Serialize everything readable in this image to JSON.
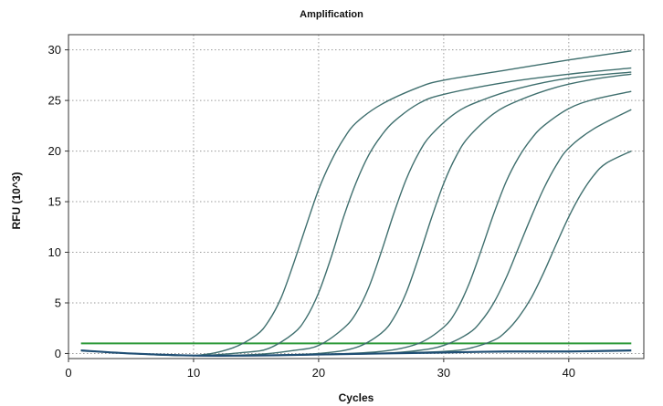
{
  "chart_data": {
    "type": "line",
    "title": "Amplification",
    "xlabel": "Cycles",
    "ylabel": "RFU (10^3)",
    "xlim": [
      0,
      46
    ],
    "ylim": [
      -0.5,
      31.5
    ],
    "xticks": [
      0,
      10,
      20,
      30,
      40
    ],
    "yticks": [
      0,
      5,
      10,
      15,
      20,
      25,
      30
    ],
    "grid": true,
    "threshold": 1.0,
    "colors": {
      "curve": "#3f6f6e",
      "baseline": "#1f4e74",
      "threshold": "#2e9a3a",
      "grid": "#9a9a9a"
    },
    "series": [
      {
        "x": [
          1,
          5,
          10,
          13,
          15,
          16,
          17,
          18,
          19,
          20,
          21,
          22,
          23,
          25,
          28,
          30,
          35,
          40,
          45
        ],
        "y": [
          0.3,
          0.0,
          -0.2,
          0.5,
          1.8,
          3.2,
          5.5,
          8.9,
          12.6,
          16.2,
          19.0,
          21.2,
          22.8,
          24.6,
          26.3,
          27.0,
          28.0,
          29.0,
          29.9
        ]
      },
      {
        "x": [
          1,
          5,
          10,
          14,
          16,
          18,
          19,
          20,
          21,
          22,
          23,
          24,
          25,
          26,
          28,
          30,
          35,
          40,
          45
        ],
        "y": [
          0.3,
          0.0,
          -0.2,
          0.1,
          0.5,
          2.0,
          3.5,
          6.0,
          9.5,
          13.5,
          16.9,
          19.6,
          21.5,
          22.9,
          24.7,
          25.6,
          26.8,
          27.6,
          28.2
        ]
      },
      {
        "x": [
          1,
          5,
          10,
          15,
          18,
          20,
          22,
          23,
          24,
          25,
          26,
          27,
          28,
          29,
          31,
          33,
          36,
          40,
          45
        ],
        "y": [
          0.3,
          0.0,
          -0.2,
          -0.1,
          0.3,
          0.8,
          2.5,
          4.0,
          6.5,
          10.0,
          13.8,
          17.2,
          19.8,
          21.6,
          23.8,
          25.0,
          26.2,
          27.2,
          27.8
        ]
      },
      {
        "x": [
          1,
          5,
          10,
          15,
          20,
          23,
          25,
          26,
          27,
          28,
          29,
          30,
          31,
          32,
          34,
          36,
          39,
          42,
          45
        ],
        "y": [
          0.3,
          0.0,
          -0.2,
          -0.2,
          0.0,
          0.6,
          2.0,
          3.5,
          6.0,
          9.5,
          13.3,
          16.8,
          19.5,
          21.4,
          23.7,
          25.0,
          26.3,
          27.1,
          27.6
        ]
      },
      {
        "x": [
          1,
          5,
          10,
          15,
          20,
          25,
          28,
          30,
          31,
          32,
          33,
          34,
          35,
          36,
          37,
          38,
          40,
          42,
          45
        ],
        "y": [
          0.3,
          0.0,
          -0.2,
          -0.2,
          -0.1,
          0.2,
          1.0,
          2.6,
          4.2,
          6.8,
          10.2,
          13.8,
          17.0,
          19.4,
          21.2,
          22.5,
          24.2,
          25.1,
          25.9
        ]
      },
      {
        "x": [
          1,
          5,
          10,
          15,
          20,
          25,
          28,
          30,
          32,
          33,
          34,
          35,
          36,
          37,
          38,
          39,
          40,
          42,
          45
        ],
        "y": [
          0.3,
          0.0,
          -0.2,
          -0.2,
          -0.1,
          0.0,
          0.3,
          0.8,
          2.0,
          3.2,
          5.0,
          7.5,
          10.5,
          13.5,
          16.3,
          18.6,
          20.3,
          22.2,
          24.1
        ]
      },
      {
        "x": [
          1,
          5,
          10,
          15,
          20,
          25,
          30,
          32,
          34,
          35,
          36,
          37,
          38,
          39,
          40,
          41,
          42,
          43,
          45
        ],
        "y": [
          0.3,
          0.0,
          -0.2,
          -0.2,
          -0.1,
          0.0,
          0.2,
          0.5,
          1.3,
          2.2,
          3.6,
          5.5,
          8.0,
          10.8,
          13.5,
          15.8,
          17.6,
          18.8,
          20.0
        ]
      },
      {
        "x": [
          1,
          5,
          10,
          15,
          20,
          25,
          30,
          35,
          40,
          45
        ],
        "y": [
          0.3,
          0.0,
          -0.2,
          -0.2,
          -0.1,
          0.0,
          0.1,
          0.2,
          0.2,
          0.3
        ]
      }
    ]
  }
}
